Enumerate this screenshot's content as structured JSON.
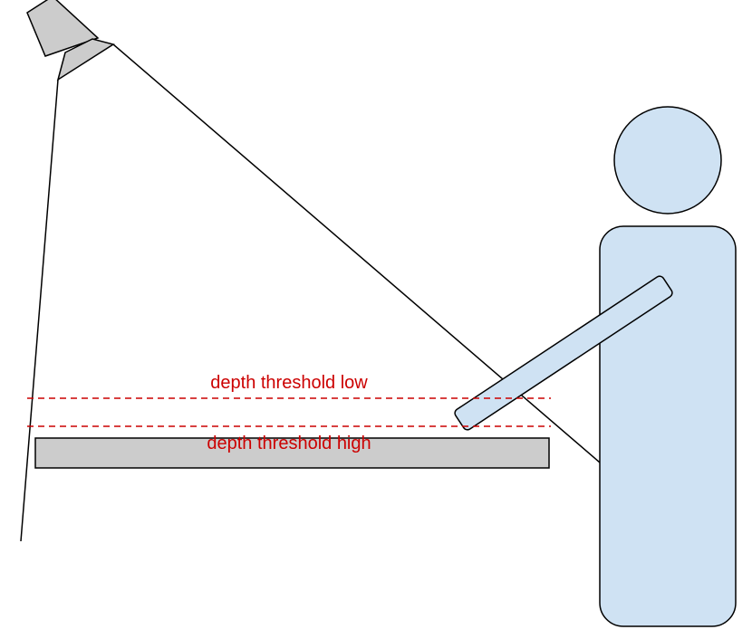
{
  "labels": {
    "threshold_low": "depth threshold low",
    "threshold_high": "depth threshold high"
  },
  "colors": {
    "stroke": "#000000",
    "camera_fill": "#cccccc",
    "table_fill": "#cccccc",
    "person_fill": "#cfe2f3",
    "threshold_color": "#cc0000",
    "background": "#ffffff"
  }
}
